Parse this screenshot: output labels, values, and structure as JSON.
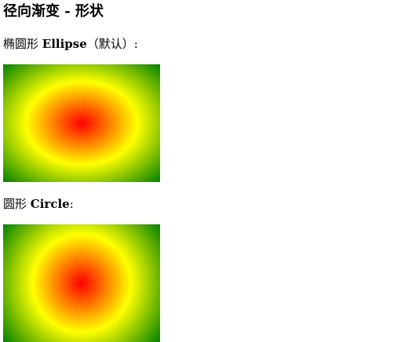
{
  "page": {
    "title": "径向渐变 - 形状"
  },
  "sections": [
    {
      "label_prefix": "椭圆形 ",
      "label_bold": "Ellipse",
      "label_suffix": "（默认）:",
      "shape": "ellipse",
      "gradient_colors": [
        "#ff0000",
        "#ffff00",
        "#008000"
      ]
    },
    {
      "label_prefix": "圆形 ",
      "label_bold": "Circle",
      "label_suffix": ":",
      "shape": "circle",
      "gradient_colors": [
        "#ff0000",
        "#ffff00",
        "#008000"
      ]
    }
  ]
}
